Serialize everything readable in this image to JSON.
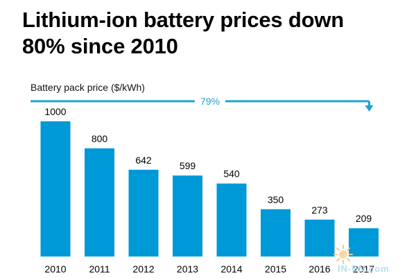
{
  "title_lines": [
    "Lithium-ion battery prices down",
    "80% since 2010"
  ],
  "colors": {
    "bar": "#0099d8",
    "arrow": "#1aa3d4",
    "text": "#000000",
    "axis": "#aaaaaa"
  },
  "chart_data": {
    "type": "bar",
    "title": "Lithium-ion battery prices down 80% since 2010",
    "ylabel": "Battery pack price ($/kWh)",
    "xlabel": "",
    "categories": [
      "2010",
      "2011",
      "2012",
      "2013",
      "2014",
      "2015",
      "2016",
      "2017"
    ],
    "values": [
      1000,
      800,
      642,
      599,
      540,
      350,
      273,
      209
    ],
    "ylim": [
      0,
      1000
    ],
    "grid": false,
    "annotation": {
      "label": "79%",
      "from": "2010",
      "to": "2017"
    }
  },
  "watermark": {
    "text": "IN-EN.com",
    "icon": "sun-logo-icon"
  }
}
